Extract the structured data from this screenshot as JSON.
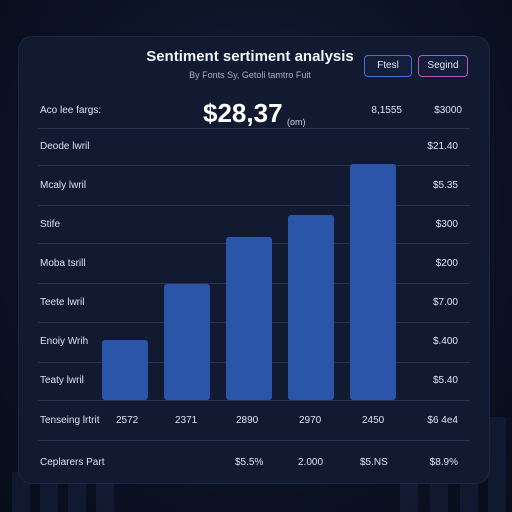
{
  "header": {
    "title": "Sentiment sertiment analysis",
    "subtitle": "By Fonts Sy, Getoli tamtro Fuit",
    "button_primary": "Ftesl",
    "button_secondary": "Segind"
  },
  "headline": {
    "value": "$28,37",
    "unit": "(om)",
    "label": "Aco lee fargs:",
    "right_1": "8,1555",
    "right_2": "$3000"
  },
  "colors": {
    "bar": "#2b55a8",
    "panel": "#111a31",
    "accent_primary": "#3f74d6",
    "accent_secondary": "#b25bb6"
  },
  "chart_data": {
    "type": "bar",
    "title": "Sentiment sertiment analysis",
    "categories": [
      "2572",
      "2371",
      "2890",
      "2970",
      "2450"
    ],
    "values": [
      60,
      116,
      163,
      185,
      236
    ],
    "row_labels": [
      "Deode lwril",
      "Mcaly lwril",
      "Stife",
      "Moba tsrill",
      "Teete lwril",
      "Enoiy Wrih",
      "Teaty lwril"
    ],
    "right_values": [
      "$21.40",
      "$5.35",
      "$300",
      "$200",
      "$7.00",
      "$.400",
      "$5.40"
    ],
    "footer_left": "Tenseing lrtrit",
    "footer_right": "$6 4e4",
    "summary": {
      "label": "Ceplarers Part",
      "values": [
        "$5.5%",
        "2.000",
        "$5.NS",
        "$8.9%"
      ]
    }
  }
}
